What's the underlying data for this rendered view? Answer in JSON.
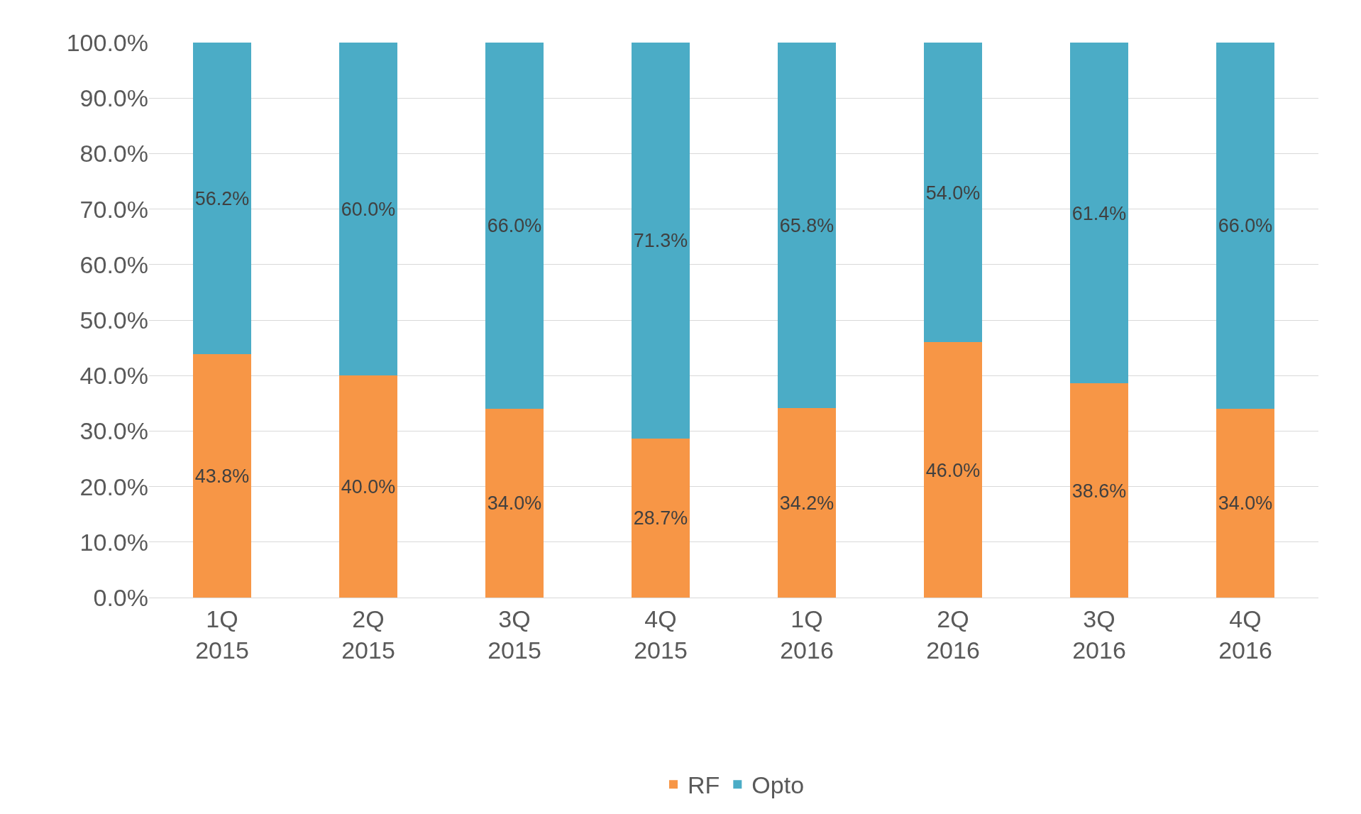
{
  "chart_data": {
    "type": "bar",
    "stacked": true,
    "categories": [
      "1Q\n2015",
      "2Q\n2015",
      "3Q\n2015",
      "4Q\n2015",
      "1Q\n2016",
      "2Q\n2016",
      "3Q\n2016",
      "4Q\n2016"
    ],
    "series": [
      {
        "name": "RF",
        "color": "#f79646",
        "values": [
          43.8,
          40.0,
          34.0,
          28.7,
          34.2,
          46.0,
          38.6,
          34.0
        ],
        "value_labels": [
          "43.8%",
          "40.0%",
          "34.0%",
          "28.7%",
          "34.2%",
          "46.0%",
          "38.6%",
          "34.0%"
        ]
      },
      {
        "name": "Opto",
        "color": "#4bacc6",
        "values": [
          56.2,
          60.0,
          66.0,
          71.3,
          65.8,
          54.0,
          61.4,
          66.0
        ],
        "value_labels": [
          "56.2%",
          "60.0%",
          "66.0%",
          "71.3%",
          "65.8%",
          "54.0%",
          "61.4%",
          "66.0%"
        ]
      }
    ],
    "ylim": [
      0,
      100
    ],
    "yticks": [
      {
        "value": 0,
        "label": "0.0%"
      },
      {
        "value": 10,
        "label": "10.0%"
      },
      {
        "value": 20,
        "label": "20.0%"
      },
      {
        "value": 30,
        "label": "30.0%"
      },
      {
        "value": 40,
        "label": "40.0%"
      },
      {
        "value": 50,
        "label": "50.0%"
      },
      {
        "value": 60,
        "label": "60.0%"
      },
      {
        "value": 70,
        "label": "70.0%"
      },
      {
        "value": 80,
        "label": "80.0%"
      },
      {
        "value": 90,
        "label": "90.0%"
      },
      {
        "value": 100,
        "label": "100.0%"
      }
    ],
    "grid": "y",
    "legend": "bottom"
  }
}
